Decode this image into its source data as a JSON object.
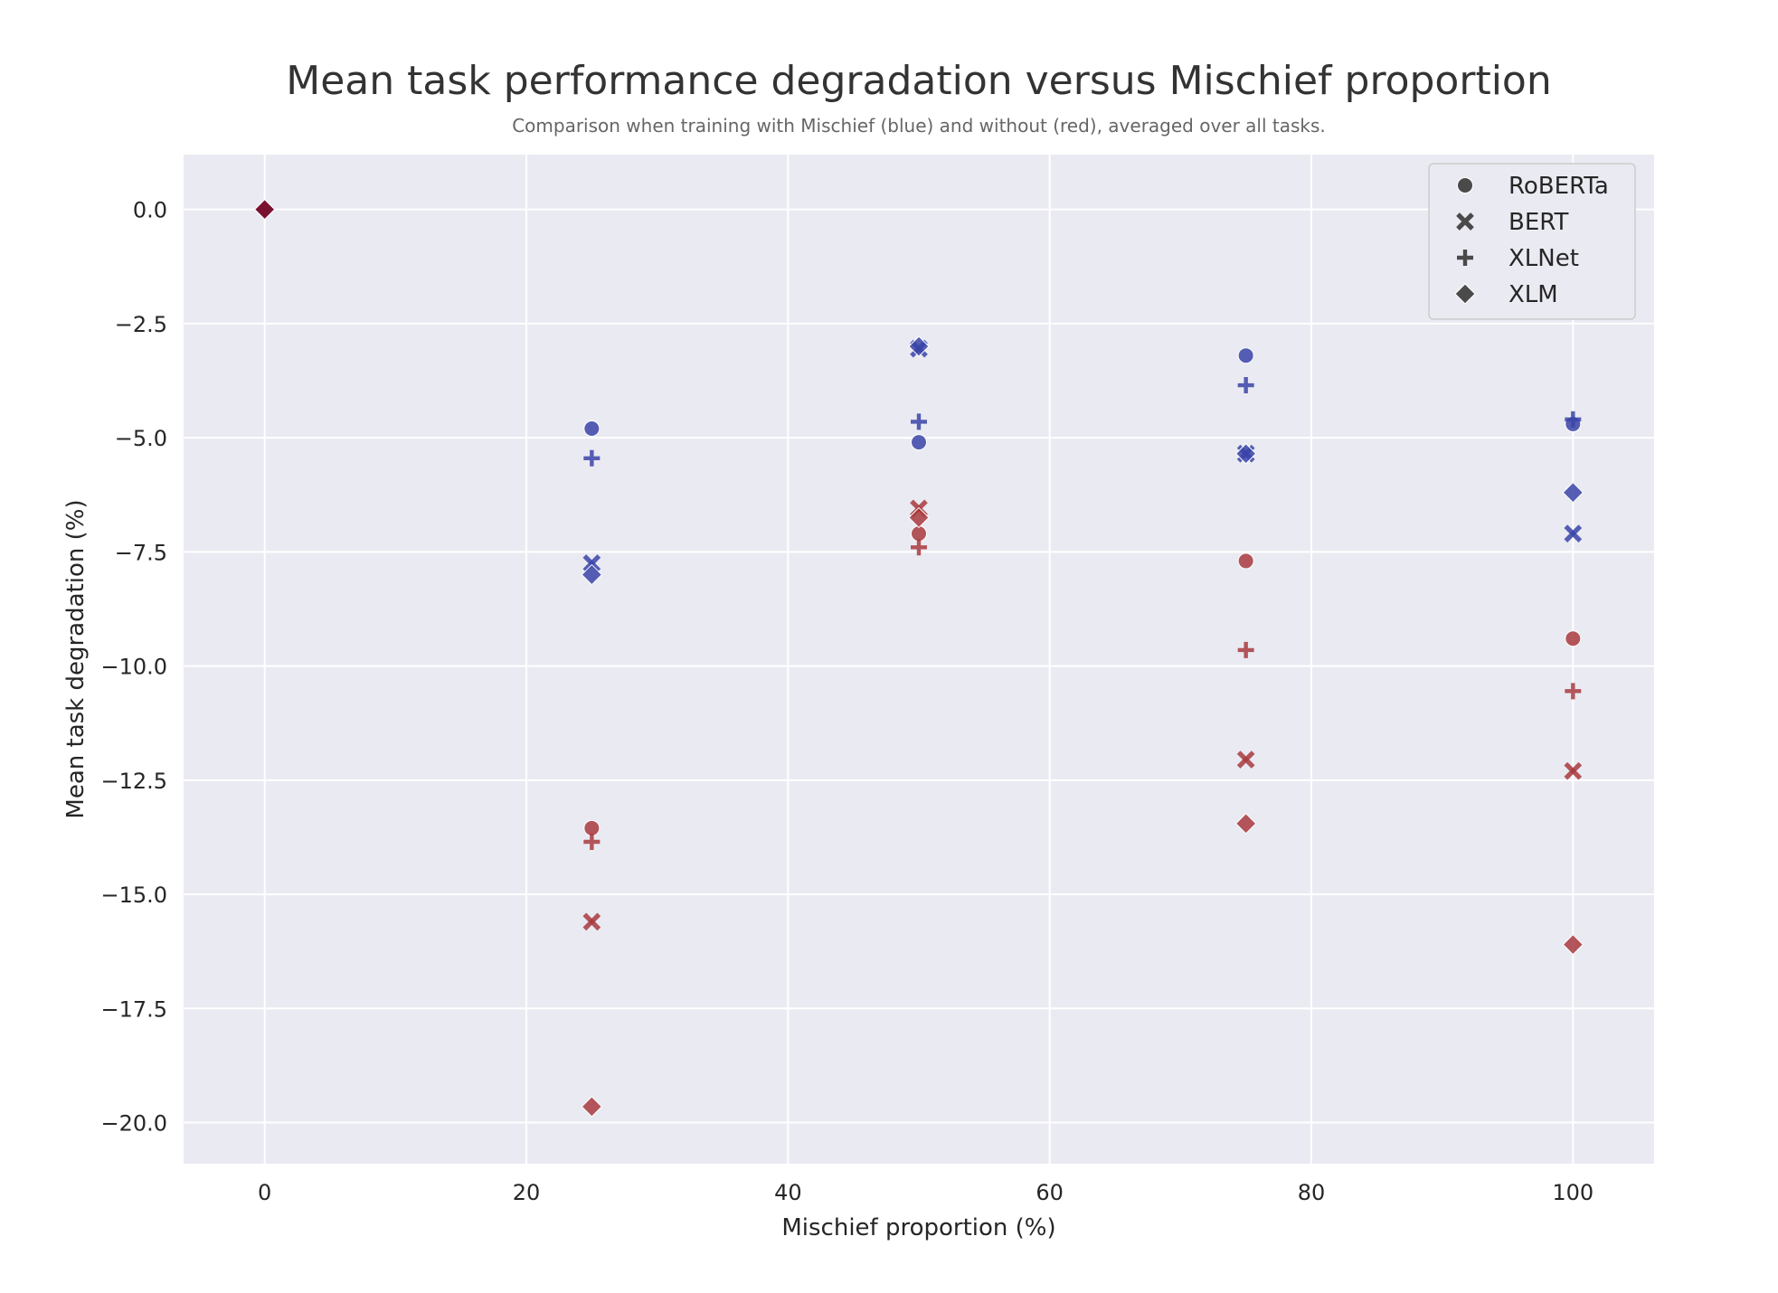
{
  "chart_data": {
    "type": "scatter",
    "title": "Mean task performance degradation versus Mischief proportion",
    "subtitle": "Comparison when training with Mischief (blue) and without (red), averaged over all tasks.",
    "xlabel": "Mischief proportion (%)",
    "ylabel": "Mean task degradation (%)",
    "xlim": [
      -6.2,
      106.2
    ],
    "ylim": [
      -20.9,
      1.2
    ],
    "xticks": [
      0,
      20,
      40,
      60,
      80,
      100
    ],
    "yticks": [
      0.0,
      -2.5,
      -5.0,
      -7.5,
      -10.0,
      -12.5,
      -15.0,
      -17.5,
      -20.0
    ],
    "xtick_labels": [
      "0",
      "20",
      "40",
      "60",
      "80",
      "100"
    ],
    "ytick_labels": [
      "0.0",
      "−2.5",
      "−5.0",
      "−7.5",
      "−10.0",
      "−12.5",
      "−15.0",
      "−17.5",
      "−20.0"
    ],
    "grid": true,
    "legend_position": "top-right",
    "colors": {
      "with_mischief": "#3a44a8",
      "without_mischief": "#a83a3e",
      "overlap": "#7a1030",
      "legend_marker": "#4a4a4a",
      "background": "#eaeaf2"
    },
    "legend": [
      {
        "label": "RoBERTa",
        "marker": "circle"
      },
      {
        "label": "BERT",
        "marker": "x"
      },
      {
        "label": "XLNet",
        "marker": "plus"
      },
      {
        "label": "XLM",
        "marker": "diamond"
      }
    ],
    "series": [
      {
        "model": "RoBERTa",
        "marker": "circle",
        "group": "with_mischief",
        "x": [
          25,
          50,
          75,
          100
        ],
        "y": [
          -4.8,
          -5.1,
          -3.2,
          -4.7
        ]
      },
      {
        "model": "BERT",
        "marker": "x",
        "group": "with_mischief",
        "x": [
          25,
          50,
          75,
          100
        ],
        "y": [
          -7.75,
          -3.05,
          -5.35,
          -7.1
        ]
      },
      {
        "model": "XLNet",
        "marker": "plus",
        "group": "with_mischief",
        "x": [
          25,
          50,
          75,
          100
        ],
        "y": [
          -5.45,
          -4.65,
          -3.85,
          -4.6
        ]
      },
      {
        "model": "XLM",
        "marker": "diamond",
        "group": "with_mischief",
        "x": [
          25,
          50,
          75,
          100
        ],
        "y": [
          -8.0,
          -3.0,
          -5.35,
          -6.2
        ]
      },
      {
        "model": "RoBERTa",
        "marker": "circle",
        "group": "without_mischief",
        "x": [
          25,
          50,
          75,
          100
        ],
        "y": [
          -13.55,
          -7.1,
          -7.7,
          -9.4
        ]
      },
      {
        "model": "BERT",
        "marker": "x",
        "group": "without_mischief",
        "x": [
          25,
          50,
          75,
          100
        ],
        "y": [
          -15.6,
          -6.55,
          -12.05,
          -12.3
        ]
      },
      {
        "model": "XLNet",
        "marker": "plus",
        "group": "without_mischief",
        "x": [
          25,
          50,
          75,
          100
        ],
        "y": [
          -13.85,
          -7.4,
          -9.65,
          -10.55
        ]
      },
      {
        "model": "XLM",
        "marker": "diamond",
        "group": "without_mischief",
        "x": [
          25,
          50,
          75,
          100
        ],
        "y": [
          -19.65,
          -6.75,
          -13.45,
          -16.1
        ]
      },
      {
        "model": "XLM",
        "marker": "diamond",
        "group": "overlap",
        "x": [
          0
        ],
        "y": [
          0.0
        ]
      }
    ]
  }
}
